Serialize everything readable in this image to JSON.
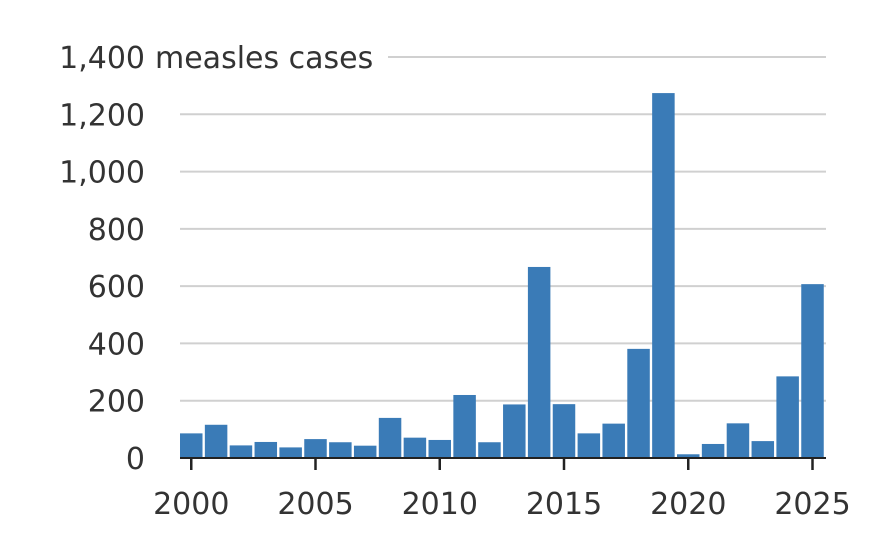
{
  "chart_data": {
    "type": "bar",
    "ylabel": "measles cases",
    "ylim": [
      0,
      1400
    ],
    "y_ticks": [
      {
        "value": 0,
        "label": "0"
      },
      {
        "value": 200,
        "label": "200"
      },
      {
        "value": 400,
        "label": "400"
      },
      {
        "value": 600,
        "label": "600"
      },
      {
        "value": 800,
        "label": "800"
      },
      {
        "value": 1000,
        "label": "1,000"
      },
      {
        "value": 1200,
        "label": "1,200"
      },
      {
        "value": 1400,
        "label": "1,400"
      }
    ],
    "x_ticks": [
      {
        "value": 2000,
        "label": "2000"
      },
      {
        "value": 2005,
        "label": "2005"
      },
      {
        "value": 2010,
        "label": "2010"
      },
      {
        "value": 2015,
        "label": "2015"
      },
      {
        "value": 2020,
        "label": "2020"
      },
      {
        "value": 2025,
        "label": "2025"
      }
    ],
    "categories": [
      2000,
      2001,
      2002,
      2003,
      2004,
      2005,
      2006,
      2007,
      2008,
      2009,
      2010,
      2011,
      2012,
      2013,
      2014,
      2015,
      2016,
      2017,
      2018,
      2019,
      2020,
      2021,
      2022,
      2023,
      2024,
      2025
    ],
    "values": [
      86,
      116,
      44,
      56,
      37,
      66,
      55,
      43,
      140,
      71,
      63,
      220,
      55,
      187,
      667,
      188,
      86,
      120,
      381,
      1274,
      13,
      49,
      121,
      59,
      285,
      607
    ],
    "bar_color": "#3a7bb7",
    "grid": true
  }
}
